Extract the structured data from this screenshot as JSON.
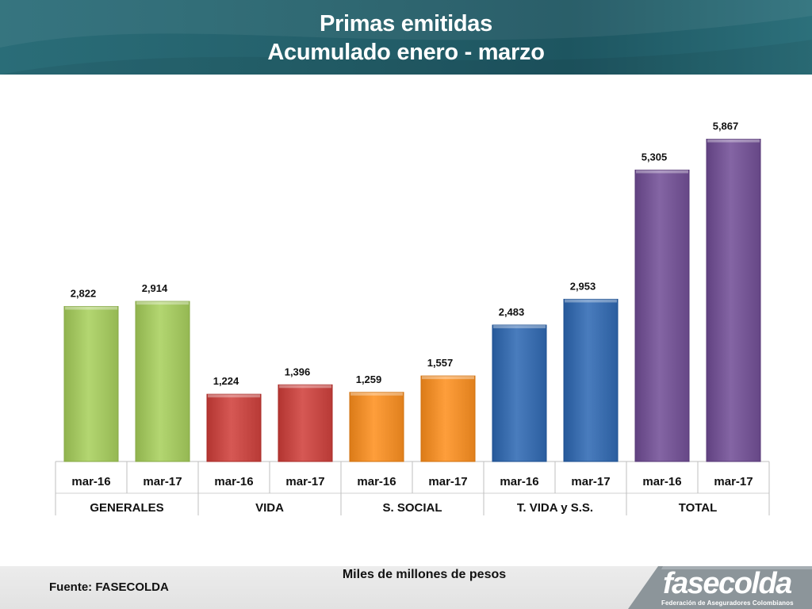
{
  "header": {
    "title_line1": "Primas emitidas",
    "title_line2": "Acumulado  enero - marzo"
  },
  "footer": {
    "unit": "Miles de millones de pesos",
    "source": "Fuente: FASECOLDA",
    "logo_text": "fasecolda",
    "logo_subtitle": "Federación de Aseguradores Colombianos"
  },
  "chart_data": {
    "type": "bar",
    "groups": [
      {
        "name": "GENERALES",
        "color": "#a9cc67",
        "bars": [
          {
            "label": "mar-16",
            "value": 2822,
            "display": "2,822"
          },
          {
            "label": "mar-17",
            "value": 2914,
            "display": "2,914"
          }
        ]
      },
      {
        "name": "VIDA",
        "color": "#cc4e4a",
        "bars": [
          {
            "label": "mar-16",
            "value": 1224,
            "display": "1,224"
          },
          {
            "label": "mar-17",
            "value": 1396,
            "display": "1,396"
          }
        ]
      },
      {
        "name": "S. SOCIAL",
        "color": "#f49431",
        "bars": [
          {
            "label": "mar-16",
            "value": 1259,
            "display": "1,259"
          },
          {
            "label": "mar-17",
            "value": 1557,
            "display": "1,557"
          }
        ]
      },
      {
        "name": "T. VIDA y S.S.",
        "color": "#3f72b3",
        "bars": [
          {
            "label": "mar-16",
            "value": 2483,
            "display": "2,483"
          },
          {
            "label": "mar-17",
            "value": 2953,
            "display": "2,953"
          }
        ]
      },
      {
        "name": "TOTAL",
        "color": "#7a5b9a",
        "bars": [
          {
            "label": "mar-16",
            "value": 5305,
            "display": "5,305"
          },
          {
            "label": "mar-17",
            "value": 5867,
            "display": "5,867"
          }
        ]
      }
    ],
    "ylim": [
      0,
      6000
    ],
    "grid": false,
    "legend": "none"
  }
}
